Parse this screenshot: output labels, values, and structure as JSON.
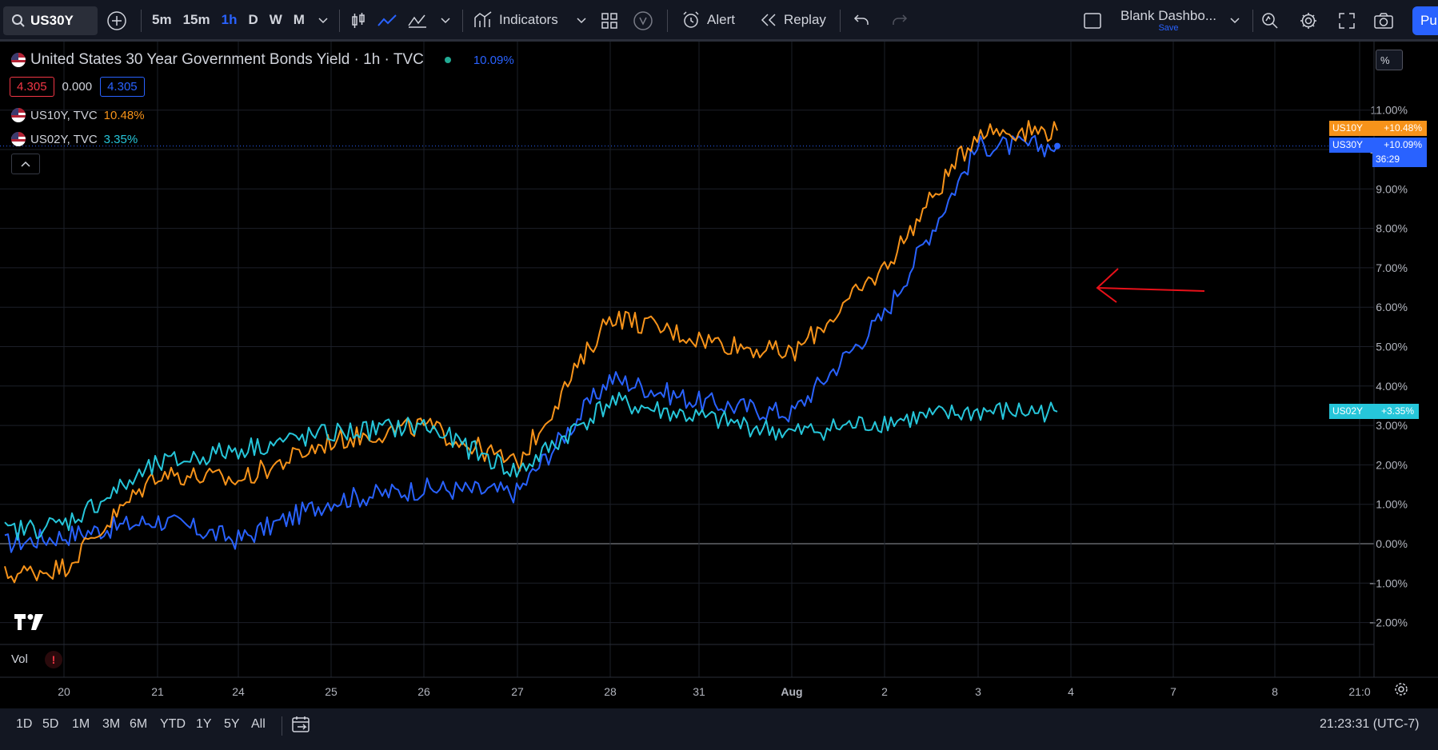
{
  "toolbar": {
    "symbol": "US30Y",
    "timeframes": [
      "5m",
      "15m",
      "1h",
      "D",
      "W",
      "M"
    ],
    "active_timeframe": "1h",
    "indicators_label": "Indicators",
    "alert_label": "Alert",
    "replay_label": "Replay",
    "layout_name": "Blank Dashbo...",
    "layout_status": "Save",
    "publish_label": "Pu"
  },
  "legend": {
    "main_title": "United States 30 Year Government Bonds Yield · 1h · TVC",
    "main_change": "10.09%",
    "bid": "4.305",
    "spread": "0.000",
    "ask": "4.305",
    "compare": [
      {
        "label": "US10Y, TVC",
        "value": "10.48%",
        "color": "#f7931a"
      },
      {
        "label": "US02Y, TVC",
        "value": "3.35%",
        "color": "#26c6da"
      }
    ]
  },
  "price_scale": {
    "unit_label": "%",
    "ticks": [
      "11.00%",
      "10.00%",
      "9.00%",
      "8.00%",
      "7.00%",
      "6.00%",
      "5.00%",
      "4.00%",
      "3.00%",
      "2.00%",
      "1.00%",
      "0.00%",
      "−1.00%",
      "−2.00%"
    ],
    "tags": [
      {
        "label": "US10Y",
        "value": "+10.48%",
        "color": "#f7931a"
      },
      {
        "label": "US30Y",
        "value": "+10.09%",
        "countdown": "36:29",
        "color": "#2962ff"
      },
      {
        "label": "US02Y",
        "value": "+3.35%",
        "color": "#26c6da"
      }
    ]
  },
  "time_scale": {
    "ticks": [
      "20",
      "21",
      "24",
      "25",
      "26",
      "27",
      "28",
      "31",
      "Aug",
      "2",
      "3",
      "4",
      "7",
      "8",
      "21:0"
    ]
  },
  "volume_pane": {
    "label": "Vol"
  },
  "bottom": {
    "ranges": [
      "1D",
      "5D",
      "1M",
      "3M",
      "6M",
      "YTD",
      "1Y",
      "5Y",
      "All"
    ],
    "clock": "21:23:31 (UTC-7)"
  },
  "chart_data": {
    "type": "line",
    "ylabel": "%",
    "ylim": [
      -2.5,
      12
    ],
    "x": [
      "20",
      "21",
      "24",
      "25",
      "26",
      "27",
      "28",
      "31",
      "Aug",
      "2",
      "3"
    ],
    "series": [
      {
        "name": "US30Y",
        "color": "#2962ff",
        "values": [
          0.2,
          0.6,
          0.1,
          1.1,
          1.4,
          1.3,
          4.2,
          3.6,
          3.3,
          5.8,
          10.09
        ]
      },
      {
        "name": "US10Y",
        "color": "#f7931a",
        "values": [
          -0.6,
          1.8,
          1.6,
          2.6,
          3.0,
          2.0,
          5.8,
          5.2,
          4.8,
          7.0,
          10.48
        ]
      },
      {
        "name": "US02Y",
        "color": "#26c6da",
        "values": [
          0.5,
          2.0,
          2.4,
          2.8,
          3.0,
          1.8,
          3.6,
          3.2,
          2.8,
          3.1,
          3.35
        ]
      }
    ]
  }
}
